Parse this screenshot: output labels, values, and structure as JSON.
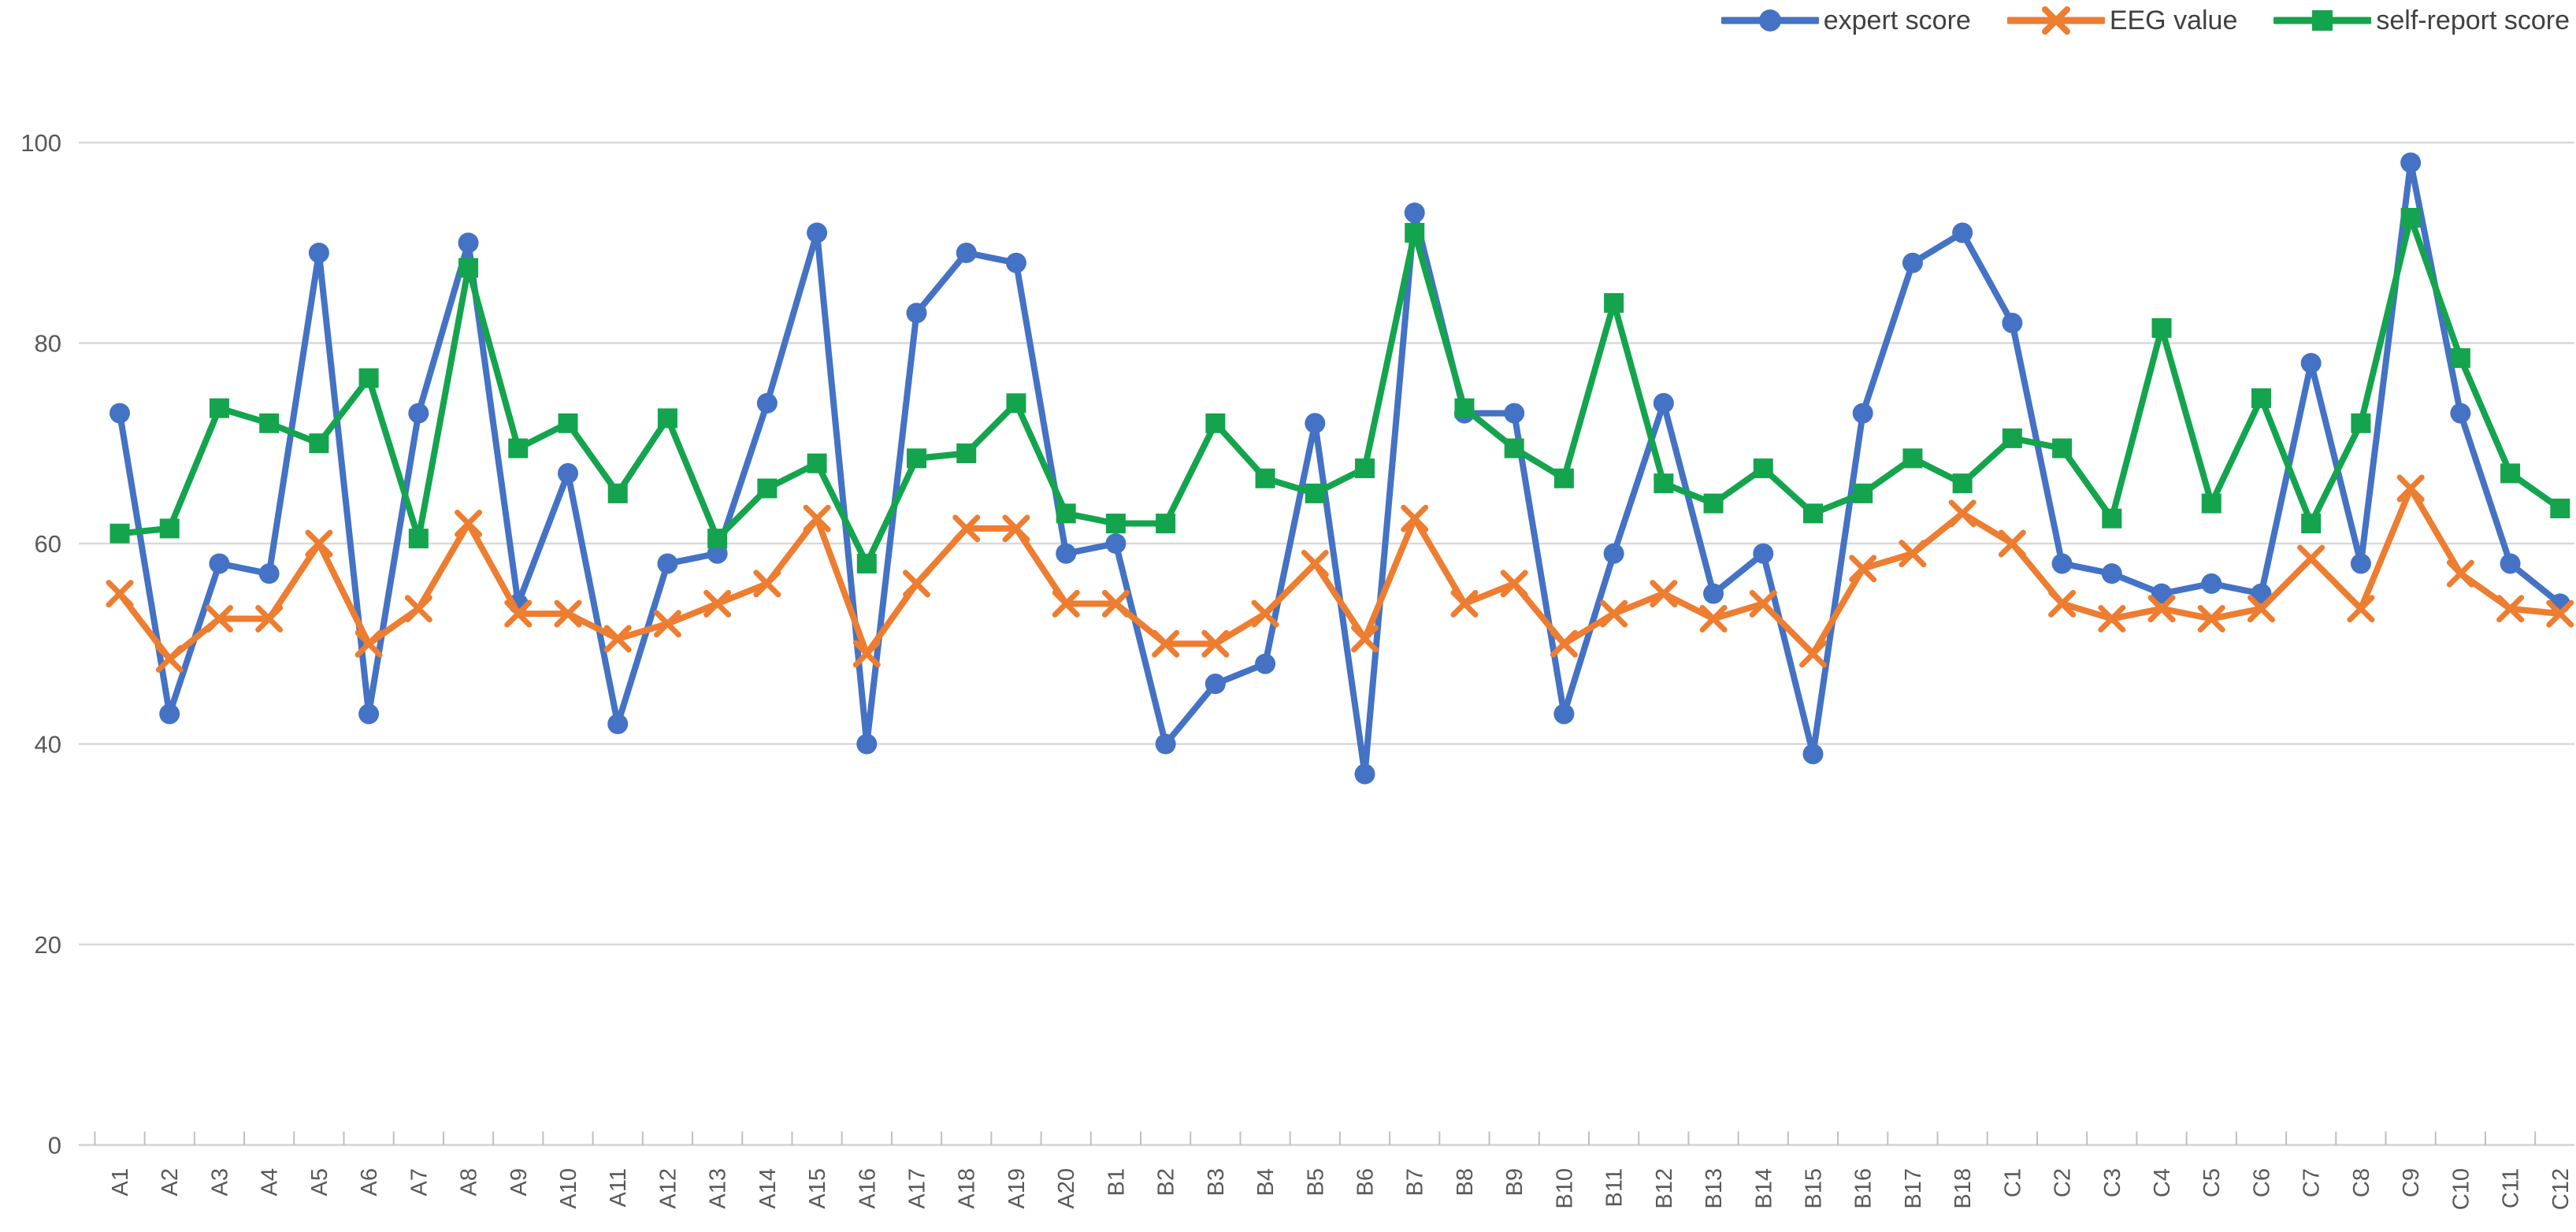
{
  "chart_data": {
    "type": "line",
    "title": "",
    "xlabel": "",
    "ylabel": "",
    "ylim": [
      0,
      100
    ],
    "yticks": [
      0,
      20,
      40,
      60,
      80,
      100
    ],
    "grid": true,
    "legend_position": "top-right",
    "categories": [
      "A1",
      "A2",
      "A3",
      "A4",
      "A5",
      "A6",
      "A7",
      "A8",
      "A9",
      "A10",
      "A11",
      "A12",
      "A13",
      "A14",
      "A15",
      "A16",
      "A17",
      "A18",
      "A19",
      "A20",
      "B1",
      "B2",
      "B3",
      "B4",
      "B5",
      "B6",
      "B7",
      "B8",
      "B9",
      "B10",
      "B11",
      "B12",
      "B13",
      "B14",
      "B15",
      "B16",
      "B17",
      "B18",
      "C1",
      "C2",
      "C3",
      "C4",
      "C5",
      "C6",
      "C7",
      "C8",
      "C9",
      "C10",
      "C11",
      "C12"
    ],
    "series": [
      {
        "name": "expert score",
        "color": "#4472C4",
        "marker": "circle",
        "values": [
          73,
          43,
          58,
          57,
          89,
          43,
          73,
          90,
          54,
          67,
          42,
          58,
          59,
          74,
          91,
          40,
          83,
          89,
          88,
          59,
          60,
          40,
          46,
          48,
          72,
          37,
          93,
          73,
          73,
          43,
          59,
          74,
          55,
          59,
          39,
          73,
          88,
          91,
          82,
          58,
          57,
          55,
          56,
          55,
          78,
          58,
          98,
          73,
          58,
          54
        ]
      },
      {
        "name": "EEG value",
        "color": "#ED7D31",
        "marker": "x",
        "values": [
          55,
          48.5,
          52.5,
          52.5,
          60,
          50,
          53.5,
          62,
          53,
          53,
          50.5,
          52,
          54,
          56,
          62.5,
          49,
          56,
          61.5,
          61.5,
          54,
          54,
          50,
          50,
          53,
          58,
          50.5,
          62.5,
          54,
          56,
          50,
          53,
          55,
          52.5,
          54,
          49,
          57.5,
          59,
          63,
          60,
          54,
          52.5,
          53.5,
          52.5,
          53.5,
          58.5,
          53.5,
          65.5,
          57,
          53.5,
          53
        ]
      },
      {
        "name": "self-report score",
        "color": "#14A44D",
        "marker": "square",
        "values": [
          61,
          61.5,
          73.5,
          72,
          70,
          76.5,
          60.5,
          87.5,
          69.5,
          72,
          65,
          72.5,
          60.5,
          65.5,
          68,
          58,
          68.5,
          69,
          74,
          63,
          62,
          62,
          72,
          66.5,
          65,
          67.5,
          91,
          73.5,
          69.5,
          66.5,
          84,
          66,
          64,
          67.5,
          63,
          65,
          68.5,
          66,
          70.5,
          69.5,
          62.5,
          81.5,
          64,
          74.5,
          62,
          72,
          92.5,
          78.5,
          67,
          63.5
        ]
      }
    ],
    "axis_text_color": "#595959",
    "gridline_color": "#D9D9D9",
    "tick_color": "#BFBFBF"
  }
}
